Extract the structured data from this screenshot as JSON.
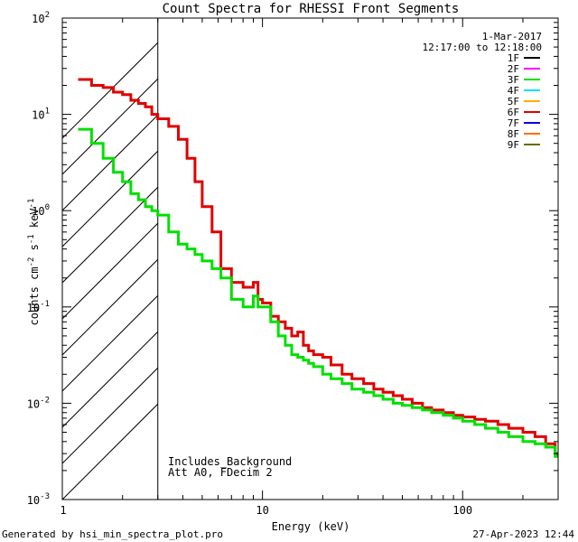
{
  "chart_data": {
    "type": "line",
    "title": "Count Spectra for RHESSI Front Segments",
    "xlabel": "Energy (keV)",
    "ylabel_main": "counts cm",
    "ylabel_exp1": "-2",
    "ylabel_mid1": " s",
    "ylabel_exp2": "-1",
    "ylabel_mid2": " keV",
    "ylabel_exp3": "-1",
    "xscale": "log",
    "yscale": "log",
    "xlim": [
      1,
      300
    ],
    "ylim": [
      0.001,
      100
    ],
    "x_ticks": [
      {
        "value": 10,
        "label": "10"
      },
      {
        "value": 100,
        "label": "100"
      }
    ],
    "y_ticks": [
      {
        "value": 0.001,
        "base": "10",
        "exp": "-3"
      },
      {
        "value": 0.01,
        "base": "10",
        "exp": "-2"
      },
      {
        "value": 0.1,
        "base": "10",
        "exp": "-1"
      },
      {
        "value": 1,
        "base": "10",
        "exp": "0"
      },
      {
        "value": 10,
        "base": "10",
        "exp": "1"
      },
      {
        "value": 100,
        "base": "10",
        "exp": "2"
      }
    ],
    "hatched_region": {
      "x_start": 1,
      "x_end": 3
    },
    "legend": {
      "date": "1-Mar-2017",
      "time_range": "12:17:00 to 12:18:00",
      "entries": [
        {
          "label": "1F",
          "color": "#000000"
        },
        {
          "label": "2F",
          "color": "#ff00ff"
        },
        {
          "label": "3F",
          "color": "#00e000"
        },
        {
          "label": "4F",
          "color": "#00e0ff"
        },
        {
          "label": "5F",
          "color": "#ffb000"
        },
        {
          "label": "6F",
          "color": "#e00000"
        },
        {
          "label": "7F",
          "color": "#0000e0"
        },
        {
          "label": "8F",
          "color": "#ff7000"
        },
        {
          "label": "9F",
          "color": "#6a6a00"
        }
      ]
    },
    "annotations": [
      "Includes_Background",
      "Att A0, FDecim 2"
    ],
    "series": [
      {
        "name": "6F",
        "color": "#e00000",
        "x": [
          1.2,
          1.4,
          1.6,
          1.8,
          2.0,
          2.2,
          2.4,
          2.6,
          2.8,
          3.0,
          3.4,
          3.8,
          4.2,
          4.6,
          5.0,
          5.6,
          6.2,
          7.0,
          8.0,
          9.0,
          9.5,
          10.0,
          11.0,
          12.0,
          13.0,
          14.0,
          15.0,
          16.0,
          17.0,
          18.0,
          20.0,
          22.0,
          25.0,
          28.0,
          32.0,
          36.0,
          40.0,
          45.0,
          50.0,
          56.0,
          63.0,
          70.0,
          80.0,
          90.0,
          100.0,
          115.0,
          130.0,
          150.0,
          170.0,
          200.0,
          230.0,
          260.0,
          290.0
        ],
        "y": [
          23.0,
          20.0,
          19.0,
          17.0,
          16.0,
          14.0,
          13.0,
          12.0,
          10.0,
          9.0,
          7.5,
          5.5,
          3.5,
          2.0,
          1.1,
          0.6,
          0.25,
          0.18,
          0.16,
          0.18,
          0.12,
          0.11,
          0.08,
          0.07,
          0.06,
          0.05,
          0.055,
          0.04,
          0.035,
          0.032,
          0.03,
          0.025,
          0.02,
          0.018,
          0.016,
          0.014,
          0.013,
          0.012,
          0.011,
          0.01,
          0.009,
          0.0085,
          0.008,
          0.0075,
          0.0072,
          0.0068,
          0.0065,
          0.006,
          0.0055,
          0.005,
          0.0045,
          0.0038,
          0.003
        ]
      },
      {
        "name": "3F",
        "color": "#00e000",
        "x": [
          1.2,
          1.4,
          1.6,
          1.8,
          2.0,
          2.2,
          2.4,
          2.6,
          2.8,
          3.0,
          3.4,
          3.8,
          4.2,
          4.6,
          5.0,
          5.6,
          6.2,
          7.0,
          8.0,
          9.0,
          9.5,
          10.0,
          11.0,
          12.0,
          13.0,
          14.0,
          15.0,
          16.0,
          17.0,
          18.0,
          20.0,
          22.0,
          25.0,
          28.0,
          32.0,
          36.0,
          40.0,
          45.0,
          50.0,
          56.0,
          63.0,
          70.0,
          80.0,
          90.0,
          100.0,
          115.0,
          130.0,
          150.0,
          170.0,
          200.0,
          230.0,
          260.0,
          290.0
        ],
        "y": [
          7.0,
          5.0,
          3.5,
          2.5,
          2.0,
          1.5,
          1.3,
          1.1,
          1.0,
          0.9,
          0.6,
          0.45,
          0.4,
          0.35,
          0.3,
          0.25,
          0.2,
          0.12,
          0.1,
          0.13,
          0.1,
          0.1,
          0.07,
          0.05,
          0.04,
          0.032,
          0.03,
          0.028,
          0.026,
          0.024,
          0.02,
          0.018,
          0.016,
          0.014,
          0.013,
          0.012,
          0.011,
          0.01,
          0.0095,
          0.009,
          0.0085,
          0.008,
          0.0075,
          0.007,
          0.0065,
          0.006,
          0.0055,
          0.005,
          0.0045,
          0.004,
          0.0038,
          0.0035,
          0.0028
        ]
      }
    ]
  },
  "footer": {
    "left": "Generated by hsi_min_spectra_plot.pro",
    "right": "27-Apr-2023 12:44"
  }
}
